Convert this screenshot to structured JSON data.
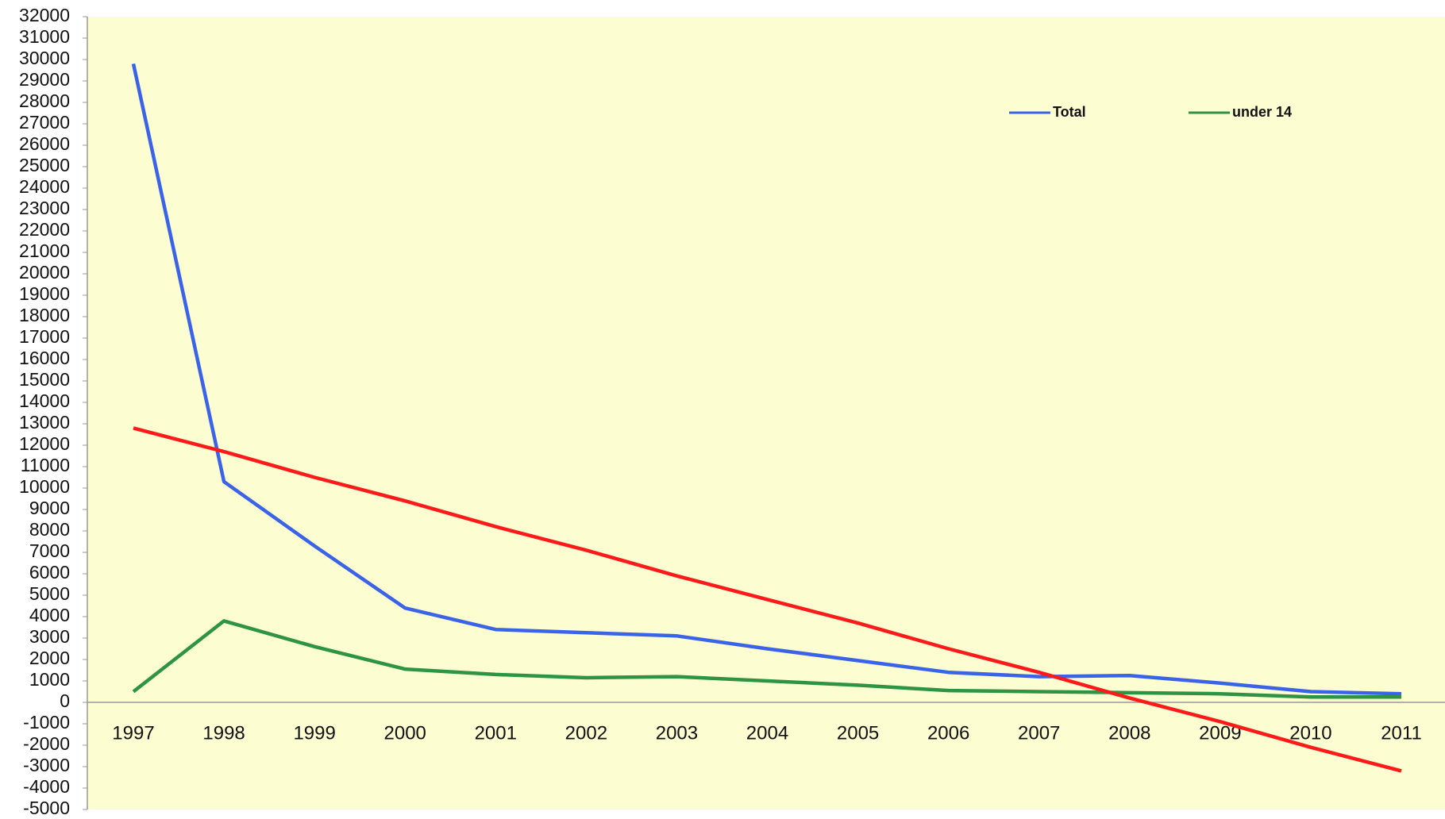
{
  "chart_data": {
    "type": "line",
    "categories": [
      "1997",
      "1998",
      "1999",
      "2000",
      "2001",
      "2002",
      "2003",
      "2004",
      "2005",
      "2006",
      "2007",
      "2008",
      "2009",
      "2010",
      "2011"
    ],
    "series": [
      {
        "name": "Total",
        "color": "#3b63e8",
        "values": [
          29800,
          10300,
          7300,
          4400,
          3400,
          3250,
          3100,
          2500,
          1950,
          1400,
          1200,
          1250,
          900,
          500,
          400
        ]
      },
      {
        "name": "under 14",
        "color": "#2e9444",
        "values": [
          500,
          3800,
          2600,
          1550,
          1300,
          1150,
          1200,
          1000,
          800,
          550,
          500,
          450,
          400,
          250,
          250
        ]
      },
      {
        "color": "#ff1a1a",
        "values": [
          12800,
          11700,
          10500,
          9400,
          8200,
          7100,
          5900,
          4800,
          3700,
          2500,
          1400,
          200,
          -900,
          -2100,
          -3200
        ]
      }
    ],
    "ylim": [
      -5000,
      32000
    ],
    "yticks": [
      -5000,
      -4000,
      -3000,
      -2000,
      -1000,
      0,
      1000,
      2000,
      3000,
      4000,
      5000,
      6000,
      7000,
      8000,
      9000,
      10000,
      11000,
      12000,
      13000,
      14000,
      15000,
      16000,
      17000,
      18000,
      19000,
      20000,
      21000,
      22000,
      23000,
      24000,
      25000,
      26000,
      27000,
      28000,
      29000,
      30000,
      31000,
      32000
    ],
    "legend": "top-right",
    "background": "#fdfdd2"
  }
}
